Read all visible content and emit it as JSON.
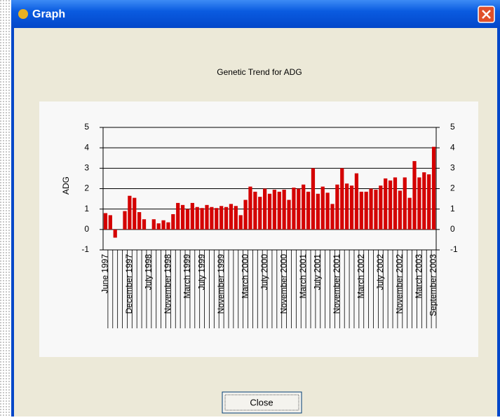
{
  "window": {
    "title": "Graph",
    "button": "Close"
  },
  "chart_data": {
    "type": "bar",
    "title": "Genetic Trend for ADG",
    "ylabel": "ADG",
    "categories": [
      "June 1997",
      null,
      null,
      null,
      null,
      "December 1997",
      null,
      null,
      null,
      "July 1998",
      null,
      null,
      null,
      "November 1998",
      null,
      null,
      null,
      "March 1999",
      null,
      null,
      "July 1999",
      null,
      null,
      null,
      "November 1999",
      null,
      null,
      null,
      null,
      "March 2000",
      null,
      null,
      null,
      "July 2000",
      null,
      null,
      null,
      "November 2000",
      null,
      null,
      null,
      "March 2001",
      null,
      null,
      "July 2001",
      null,
      null,
      null,
      "November 2001",
      null,
      null,
      null,
      null,
      "March 2002",
      null,
      null,
      null,
      "July 2002",
      null,
      null,
      null,
      "November 2002",
      null,
      null,
      null,
      "March 2003",
      null,
      null,
      "September 2003"
    ],
    "values": [
      0.8,
      0.7,
      -0.4,
      0.0,
      0.9,
      1.65,
      1.55,
      0.85,
      0.5,
      0.0,
      0.5,
      0.3,
      0.45,
      0.35,
      0.75,
      1.3,
      1.2,
      1.0,
      1.3,
      1.1,
      1.05,
      1.2,
      1.1,
      1.05,
      1.15,
      1.1,
      1.25,
      1.15,
      0.7,
      1.45,
      2.1,
      1.85,
      1.6,
      2.0,
      1.75,
      1.95,
      1.85,
      1.95,
      1.45,
      2.05,
      2.0,
      2.2,
      1.85,
      3.0,
      1.75,
      2.1,
      1.8,
      1.25,
      2.2,
      3.0,
      2.25,
      2.15,
      2.75,
      1.85,
      1.85,
      2.0,
      1.95,
      2.15,
      2.5,
      2.4,
      2.55,
      1.9,
      2.55,
      1.55,
      3.35,
      2.55,
      2.8,
      2.7,
      4.05
    ],
    "color": "#d40000",
    "ylim": [
      -1,
      5
    ],
    "yticks": [
      -1,
      0,
      1,
      2,
      3,
      4,
      5
    ],
    "y2lim": [
      -1,
      5
    ],
    "y2ticks": [
      -1,
      0,
      1,
      2,
      3,
      4,
      5
    ],
    "grid": true
  }
}
